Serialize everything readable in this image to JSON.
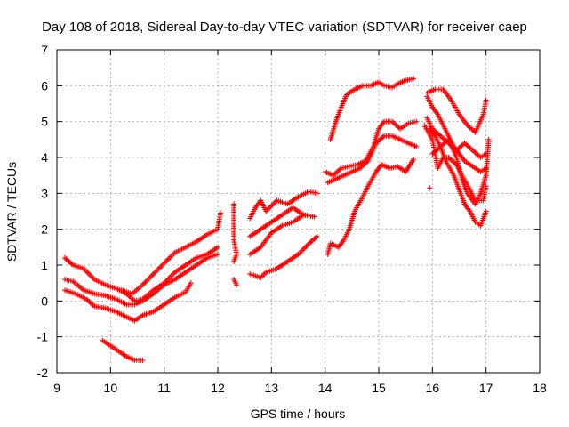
{
  "chart_data": {
    "type": "scatter",
    "title": "Day 108 of 2018, Sidereal Day-to-day VTEC variation (SDTVAR) for receiver caep",
    "xlabel": "GPS time / hours",
    "ylabel": "SDTVAR / TECUs",
    "xlim": [
      9,
      18
    ],
    "ylim": [
      -2,
      7
    ],
    "xticks": [
      "9",
      "10",
      "11",
      "12",
      "13",
      "14",
      "15",
      "16",
      "17",
      "18"
    ],
    "yticks": [
      "-2",
      "-1",
      "0",
      "1",
      "2",
      "3",
      "4",
      "5",
      "6",
      "7"
    ],
    "grid": true,
    "marker": "+",
    "color": "#ff0000",
    "segments": [
      [
        [
          9.15,
          1.2
        ],
        [
          9.3,
          1.0
        ],
        [
          9.5,
          0.9
        ],
        [
          9.7,
          0.6
        ],
        [
          9.9,
          0.45
        ],
        [
          10.1,
          0.35
        ],
        [
          10.3,
          0.2
        ],
        [
          10.45,
          0.0
        ],
        [
          10.6,
          0.05
        ],
        [
          10.8,
          0.3
        ],
        [
          11.0,
          0.5
        ],
        [
          11.2,
          0.8
        ],
        [
          11.4,
          1.0
        ],
        [
          11.6,
          1.2
        ],
        [
          11.8,
          1.3
        ],
        [
          12.0,
          1.5
        ]
      ],
      [
        [
          9.15,
          0.6
        ],
        [
          9.3,
          0.55
        ],
        [
          9.5,
          0.3
        ],
        [
          9.7,
          0.2
        ],
        [
          9.9,
          0.15
        ],
        [
          10.1,
          0.05
        ],
        [
          10.3,
          -0.1
        ],
        [
          10.45,
          -0.1
        ],
        [
          10.6,
          0.0
        ],
        [
          10.8,
          0.2
        ],
        [
          11.0,
          0.45
        ],
        [
          11.2,
          0.6
        ],
        [
          11.4,
          0.8
        ],
        [
          11.6,
          1.0
        ],
        [
          11.8,
          1.2
        ],
        [
          12.0,
          1.3
        ]
      ],
      [
        [
          9.15,
          0.3
        ],
        [
          9.35,
          0.2
        ],
        [
          9.55,
          0.05
        ],
        [
          9.7,
          -0.15
        ],
        [
          9.9,
          -0.2
        ],
        [
          10.1,
          -0.3
        ],
        [
          10.3,
          -0.45
        ],
        [
          10.45,
          -0.55
        ],
        [
          10.6,
          -0.4
        ],
        [
          10.8,
          -0.3
        ],
        [
          11.0,
          -0.1
        ],
        [
          11.2,
          0.1
        ],
        [
          11.4,
          0.25
        ],
        [
          11.5,
          0.5
        ]
      ],
      [
        [
          10.2,
          0.3
        ],
        [
          10.4,
          0.2
        ],
        [
          10.6,
          0.45
        ],
        [
          10.8,
          0.75
        ],
        [
          11.0,
          1.05
        ],
        [
          11.2,
          1.35
        ],
        [
          11.4,
          1.5
        ],
        [
          11.6,
          1.65
        ],
        [
          11.8,
          1.85
        ],
        [
          12.0,
          2.0
        ],
        [
          12.05,
          2.45
        ]
      ],
      [
        [
          9.85,
          -1.1
        ],
        [
          10.0,
          -1.25
        ],
        [
          10.15,
          -1.4
        ],
        [
          10.3,
          -1.55
        ],
        [
          10.45,
          -1.65
        ],
        [
          10.6,
          -1.65
        ]
      ],
      [
        [
          12.3,
          2.7
        ],
        [
          12.3,
          2.2
        ],
        [
          12.3,
          1.7
        ],
        [
          12.35,
          1.3
        ],
        [
          12.3,
          1.1
        ]
      ],
      [
        [
          12.3,
          0.6
        ],
        [
          12.35,
          0.45
        ]
      ],
      [
        [
          12.6,
          1.8
        ],
        [
          12.8,
          2.0
        ],
        [
          13.0,
          2.2
        ],
        [
          13.2,
          2.4
        ],
        [
          13.4,
          2.6
        ],
        [
          13.6,
          2.4
        ],
        [
          13.8,
          2.35
        ]
      ],
      [
        [
          12.6,
          2.3
        ],
        [
          12.7,
          2.6
        ],
        [
          12.8,
          2.8
        ],
        [
          12.9,
          2.5
        ],
        [
          13.1,
          2.8
        ],
        [
          13.3,
          2.7
        ],
        [
          13.5,
          2.9
        ],
        [
          13.7,
          3.05
        ],
        [
          13.85,
          3.0
        ]
      ],
      [
        [
          12.6,
          1.3
        ],
        [
          12.8,
          1.5
        ],
        [
          13.0,
          1.9
        ],
        [
          13.2,
          2.1
        ],
        [
          13.4,
          2.2
        ],
        [
          13.6,
          2.4
        ]
      ],
      [
        [
          12.6,
          0.75
        ],
        [
          12.8,
          0.65
        ],
        [
          12.9,
          0.8
        ],
        [
          13.1,
          0.9
        ],
        [
          13.3,
          1.1
        ],
        [
          13.5,
          1.3
        ],
        [
          13.7,
          1.6
        ],
        [
          13.85,
          1.8
        ]
      ],
      [
        [
          14.05,
          1.3
        ],
        [
          14.1,
          1.6
        ],
        [
          14.25,
          1.5
        ],
        [
          14.35,
          1.7
        ],
        [
          14.45,
          2.0
        ],
        [
          14.55,
          2.5
        ],
        [
          14.7,
          2.9
        ],
        [
          14.8,
          3.2
        ],
        [
          14.95,
          3.6
        ],
        [
          15.05,
          3.8
        ],
        [
          15.2,
          3.7
        ],
        [
          15.35,
          3.75
        ],
        [
          15.5,
          3.6
        ],
        [
          15.65,
          3.95
        ]
      ],
      [
        [
          14.0,
          3.6
        ],
        [
          14.15,
          3.5
        ],
        [
          14.3,
          3.7
        ],
        [
          14.45,
          3.75
        ],
        [
          14.6,
          3.8
        ],
        [
          14.75,
          3.9
        ],
        [
          14.9,
          4.3
        ],
        [
          15.0,
          4.8
        ],
        [
          15.1,
          5.0
        ],
        [
          15.25,
          5.0
        ],
        [
          15.4,
          4.8
        ],
        [
          15.55,
          4.95
        ],
        [
          15.7,
          5.0
        ]
      ],
      [
        [
          14.05,
          3.3
        ],
        [
          14.2,
          3.4
        ],
        [
          14.35,
          3.5
        ],
        [
          14.5,
          3.6
        ],
        [
          14.65,
          3.7
        ],
        [
          14.8,
          3.9
        ],
        [
          14.95,
          4.4
        ],
        [
          15.1,
          4.6
        ],
        [
          15.25,
          4.6
        ],
        [
          15.4,
          4.5
        ],
        [
          15.55,
          4.4
        ],
        [
          15.7,
          4.3
        ]
      ],
      [
        [
          14.1,
          4.5
        ],
        [
          14.2,
          5.0
        ],
        [
          14.3,
          5.4
        ],
        [
          14.4,
          5.75
        ],
        [
          14.55,
          5.9
        ],
        [
          14.7,
          6.0
        ],
        [
          14.85,
          6.0
        ],
        [
          15.0,
          6.1
        ],
        [
          15.1,
          6.0
        ],
        [
          15.25,
          5.95
        ],
        [
          15.35,
          6.05
        ],
        [
          15.5,
          6.15
        ],
        [
          15.65,
          6.2
        ]
      ],
      [
        [
          15.9,
          5.7
        ],
        [
          16.0,
          5.4
        ],
        [
          16.1,
          5.2
        ],
        [
          16.2,
          4.9
        ],
        [
          16.3,
          4.6
        ],
        [
          16.4,
          4.3
        ],
        [
          16.5,
          4.1
        ],
        [
          16.6,
          3.9
        ],
        [
          16.75,
          3.75
        ],
        [
          16.9,
          3.6
        ],
        [
          17.0,
          3.7
        ]
      ],
      [
        [
          15.9,
          5.8
        ],
        [
          16.05,
          5.9
        ],
        [
          16.2,
          5.9
        ],
        [
          16.35,
          5.6
        ],
        [
          16.5,
          5.2
        ],
        [
          16.65,
          4.9
        ],
        [
          16.8,
          4.7
        ],
        [
          16.95,
          5.2
        ],
        [
          17.0,
          5.6
        ]
      ],
      [
        [
          15.9,
          5.1
        ],
        [
          16.0,
          4.8
        ],
        [
          16.15,
          4.6
        ],
        [
          16.3,
          4.4
        ],
        [
          16.45,
          4.2
        ],
        [
          16.6,
          4.4
        ],
        [
          16.75,
          4.2
        ],
        [
          16.9,
          4.0
        ],
        [
          17.0,
          4.1
        ]
      ],
      [
        [
          15.95,
          4.8
        ],
        [
          16.05,
          4.6
        ],
        [
          16.15,
          4.3
        ],
        [
          16.25,
          3.9
        ],
        [
          16.4,
          3.5
        ],
        [
          16.5,
          3.1
        ],
        [
          16.6,
          2.7
        ],
        [
          16.7,
          2.5
        ],
        [
          16.8,
          2.2
        ],
        [
          16.9,
          2.1
        ],
        [
          17.0,
          2.5
        ]
      ],
      [
        [
          15.85,
          4.9
        ],
        [
          16.0,
          4.5
        ],
        [
          16.1,
          3.7
        ],
        [
          16.2,
          4.0
        ],
        [
          16.3,
          4.0
        ],
        [
          16.45,
          3.8
        ],
        [
          16.55,
          3.5
        ],
        [
          16.7,
          3.1
        ],
        [
          16.8,
          2.8
        ],
        [
          16.95,
          2.8
        ],
        [
          17.0,
          3.2
        ]
      ],
      [
        [
          16.0,
          4.1
        ],
        [
          16.15,
          4.3
        ],
        [
          16.3,
          4.5
        ],
        [
          16.45,
          4.0
        ],
        [
          16.55,
          3.4
        ],
        [
          16.65,
          3.0
        ],
        [
          16.8,
          2.7
        ],
        [
          16.9,
          3.0
        ],
        [
          17.0,
          3.5
        ],
        [
          17.05,
          4.5
        ]
      ],
      [
        [
          15.95,
          3.15
        ]
      ]
    ]
  }
}
